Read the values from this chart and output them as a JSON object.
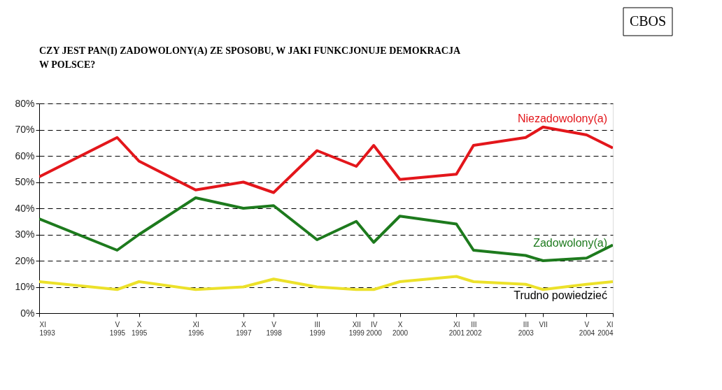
{
  "chart_data": {
    "type": "line",
    "title": "CZY JEST PAN(I) ZADOWOLONY(A) ZE SPOSOBU, W JAKI FUNKCJONUJE DEMOKRACJA W POLSCE?",
    "annotations": [
      "CBOS"
    ],
    "x": [
      "1993-11",
      "1995-05",
      "1995-10",
      "1996-11",
      "1997-10",
      "1998-05",
      "1999-03",
      "1999-12",
      "2000-04",
      "2000-10",
      "2001-11",
      "2002-03",
      "2003-03",
      "2003-07",
      "2004-05",
      "2004-11"
    ],
    "series": [
      {
        "name": "Niezadowolony(a)",
        "color": "#e3161b",
        "values": [
          52,
          67,
          58,
          47,
          50,
          46,
          62,
          56,
          64,
          51,
          53,
          64,
          67,
          71,
          68,
          63
        ]
      },
      {
        "name": "Zadowolony(a)",
        "color": "#1d7a1d",
        "values": [
          36,
          24,
          30,
          44,
          40,
          41,
          28,
          35,
          27,
          37,
          34,
          24,
          22,
          20,
          21,
          26
        ]
      },
      {
        "name": "Trudno powiedzieć",
        "color": "#ece12a",
        "values": [
          12,
          9,
          12,
          9,
          10,
          13,
          10,
          9,
          9,
          12,
          14,
          12,
          11,
          9,
          11,
          12
        ]
      }
    ],
    "xlim": [
      "1993-11",
      "2004-11"
    ],
    "xticks": [
      {
        "value": "1993-11",
        "label": "XI 1993"
      },
      {
        "value": "1995-05",
        "label": "V 1995"
      },
      {
        "value": "1995-10",
        "label": "X 1995"
      },
      {
        "value": "1996-11",
        "label": "XI 1996"
      },
      {
        "value": "1997-10",
        "label": "X 1997"
      },
      {
        "value": "1998-05",
        "label": "V 1998"
      },
      {
        "value": "1999-03",
        "label": "III 1999"
      },
      {
        "value": "1999-12",
        "label": "XII 1999"
      },
      {
        "value": "2000-04",
        "label": "IV 2000"
      },
      {
        "value": "2000-10",
        "label": "X 2000"
      },
      {
        "value": "2001-11",
        "label": "XI 2001"
      },
      {
        "value": "2002-03",
        "label": "III 2002"
      },
      {
        "value": "2003-03",
        "label": "III 2003"
      },
      {
        "value": "2003-07",
        "label": "VII"
      },
      {
        "value": "2004-05",
        "label": "V 2004"
      },
      {
        "value": "2004-11",
        "label": "XI 2004"
      }
    ],
    "ylim": [
      0,
      80
    ],
    "yticks": [
      {
        "value": 0,
        "label": "0%"
      },
      {
        "value": 10,
        "label": "10%"
      },
      {
        "value": 20,
        "label": "20%"
      },
      {
        "value": 30,
        "label": "30%"
      },
      {
        "value": 40,
        "label": "40%"
      },
      {
        "value": 50,
        "label": "50%"
      },
      {
        "value": 60,
        "label": "60%"
      },
      {
        "value": 70,
        "label": "70%"
      },
      {
        "value": 80,
        "label": "80%"
      }
    ],
    "grid": "y",
    "line_style": "solid",
    "marker": "none"
  }
}
